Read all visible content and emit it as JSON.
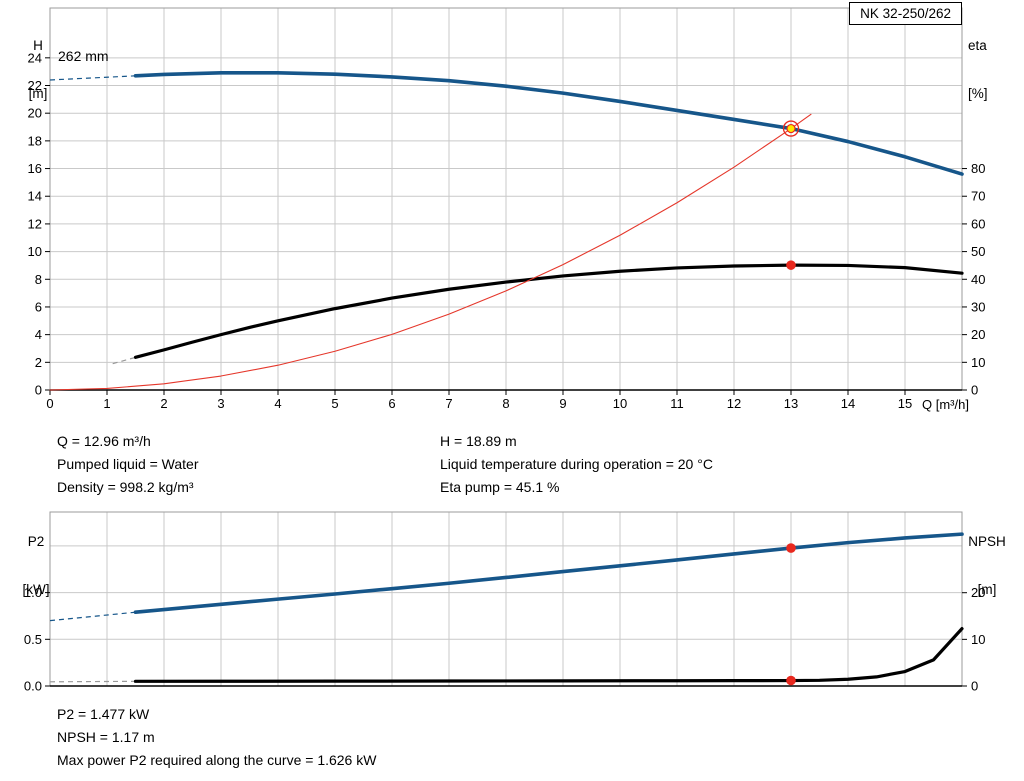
{
  "pump_model_box": "NK 32-250/262",
  "labels": {
    "top_left_axis_line1": "H",
    "top_left_axis_line2": "[m]",
    "top_right_axis_line1": "eta",
    "top_right_axis_line2": "[%]",
    "top_x_axis": "Q [m³/h]",
    "impeller_diameter": "262 mm",
    "bottom_left_axis_line1": "P2",
    "bottom_left_axis_line2": "[kW]",
    "bottom_right_axis_line1": "NPSH",
    "bottom_right_axis_line2": "[m]"
  },
  "operating_info": {
    "left": [
      "Q = 12.96 m³/h",
      "Pumped liquid = Water",
      "Density = 998.2 kg/m³"
    ],
    "right": [
      "H = 18.89 m",
      "Liquid temperature during operation = 20 °C",
      "Eta pump = 45.1 %"
    ]
  },
  "bottom_info": [
    "P2 = 1.477 kW",
    "NPSH = 1.17 m",
    "Max power P2 required along the curve = 1.626 kW"
  ],
  "colors": {
    "curve_blue": "#16568a",
    "curve_black": "#000000",
    "curve_red": "#e5372b",
    "marker_red": "#e8281e",
    "marker_yellow": "#ffe600",
    "grid": "#c9c9c9",
    "frame": "#9b9b9b",
    "dash_gray": "#999999"
  },
  "chart_data": [
    {
      "type": "line",
      "name": "qh-efficiency-chart",
      "title": "NK 32-250/262",
      "x_axis": {
        "label": "Q [m³/h]",
        "min": 0,
        "max": 16,
        "grid_step": 1,
        "tick_values": [
          0,
          1,
          2,
          3,
          4,
          5,
          6,
          7,
          8,
          9,
          10,
          11,
          12,
          13,
          14,
          15
        ],
        "tick_labels": [
          "0",
          "1",
          "2",
          "3",
          "4",
          "5",
          "6",
          "7",
          "8",
          "9",
          "10",
          "11",
          "12",
          "13",
          "14",
          "15"
        ]
      },
      "y_left": {
        "label": "H [m]",
        "min": 0,
        "max": 27.6,
        "tick_values": [
          0,
          2,
          4,
          6,
          8,
          10,
          12,
          14,
          16,
          18,
          20,
          22,
          24
        ],
        "tick_labels": [
          "0",
          "2",
          "4",
          "6",
          "8",
          "10",
          "12",
          "14",
          "16",
          "18",
          "20",
          "22",
          "24"
        ],
        "grid_values": [
          2,
          4,
          6,
          8,
          10,
          12,
          14,
          16,
          18,
          20,
          22,
          24
        ]
      },
      "y_right": {
        "label": "eta [%]",
        "min": 0,
        "max": 138,
        "tick_values": [
          0,
          10,
          20,
          30,
          40,
          50,
          60,
          70,
          80
        ],
        "tick_labels": [
          "0",
          "10",
          "20",
          "30",
          "40",
          "50",
          "60",
          "70",
          "80"
        ]
      },
      "series": [
        {
          "name": "head-curve-262mm",
          "axis": "left",
          "color": "#16568a",
          "width": 3.6,
          "dash_lead": [
            [
              0,
              22.4
            ],
            [
              1.5,
              22.7
            ]
          ],
          "points": [
            [
              1.5,
              22.7
            ],
            [
              2,
              22.8
            ],
            [
              3,
              22.92
            ],
            [
              4,
              22.92
            ],
            [
              5,
              22.82
            ],
            [
              6,
              22.62
            ],
            [
              7,
              22.35
            ],
            [
              8,
              21.95
            ],
            [
              9,
              21.45
            ],
            [
              10,
              20.85
            ],
            [
              11,
              20.2
            ],
            [
              12,
              19.55
            ],
            [
              13,
              18.89
            ],
            [
              14,
              17.95
            ],
            [
              15,
              16.85
            ],
            [
              16,
              15.6
            ]
          ]
        },
        {
          "name": "efficiency-curve",
          "axis": "right",
          "color": "#000000",
          "width": 3.2,
          "dash_color": "#999999",
          "dash_lead": [
            [
              1.1,
              9.5
            ],
            [
              1.5,
              11.8
            ]
          ],
          "points": [
            [
              1.5,
              11.8
            ],
            [
              2,
              14.5
            ],
            [
              2.5,
              17.3
            ],
            [
              3,
              20
            ],
            [
              3.5,
              22.6
            ],
            [
              4,
              25
            ],
            [
              5,
              29.4
            ],
            [
              6,
              33.2
            ],
            [
              7,
              36.4
            ],
            [
              8,
              39
            ],
            [
              9,
              41.2
            ],
            [
              10,
              42.9
            ],
            [
              11,
              44.1
            ],
            [
              12,
              44.8
            ],
            [
              13,
              45.1
            ],
            [
              14,
              45
            ],
            [
              15,
              44.2
            ],
            [
              16,
              42.2
            ]
          ]
        },
        {
          "name": "duty-point-parabola",
          "axis": "left",
          "color": "#e5372b",
          "width": 1.1,
          "points": [
            [
              0,
              0
            ],
            [
              1,
              0.11
            ],
            [
              2,
              0.45
            ],
            [
              3,
              1.01
            ],
            [
              4,
              1.79
            ],
            [
              5,
              2.8
            ],
            [
              6,
              4.02
            ],
            [
              7,
              5.48
            ],
            [
              8,
              7.16
            ],
            [
              9,
              9.06
            ],
            [
              10,
              11.18
            ],
            [
              11,
              13.53
            ],
            [
              12,
              16.1
            ],
            [
              13,
              18.89
            ],
            [
              13.35,
              19.92
            ]
          ]
        }
      ],
      "markers": [
        {
          "style": "ring-yellow",
          "axis": "left",
          "x": 13,
          "y": 18.89
        },
        {
          "style": "dot",
          "axis": "right",
          "x": 13,
          "y": 45.1
        }
      ]
    },
    {
      "type": "line",
      "name": "p2-npsh-chart",
      "title": "",
      "x_axis": {
        "label": "",
        "min": 0,
        "max": 16,
        "grid_step": 1,
        "tick_values": [],
        "tick_labels": []
      },
      "y_left": {
        "label": "P2 [kW]",
        "min": 0,
        "max": 1.863,
        "tick_values": [
          0,
          0.5,
          1
        ],
        "tick_labels": [
          "0.0",
          "0.5",
          "1.0"
        ],
        "grid_values": [
          0.5,
          1,
          1.5
        ]
      },
      "y_right": {
        "label": "NPSH [m]",
        "min": 0,
        "max": 37.3,
        "tick_values": [
          0,
          10,
          20
        ],
        "tick_labels": [
          "0",
          "10",
          "20"
        ]
      },
      "series": [
        {
          "name": "p2-curve",
          "axis": "left",
          "color": "#16568a",
          "width": 3.6,
          "dash_lead": [
            [
              0,
              0.7
            ],
            [
              1.5,
              0.79
            ]
          ],
          "points": [
            [
              1.5,
              0.79
            ],
            [
              2,
              0.818
            ],
            [
              3,
              0.875
            ],
            [
              4,
              0.93
            ],
            [
              5,
              0.985
            ],
            [
              6,
              1.042
            ],
            [
              7,
              1.1
            ],
            [
              8,
              1.162
            ],
            [
              9,
              1.225
            ],
            [
              10,
              1.287
            ],
            [
              11,
              1.35
            ],
            [
              12,
              1.414
            ],
            [
              13,
              1.477
            ],
            [
              14,
              1.535
            ],
            [
              15,
              1.585
            ],
            [
              16,
              1.626
            ]
          ]
        },
        {
          "name": "npsh-curve",
          "axis": "right",
          "color": "#000000",
          "width": 3.2,
          "dash_color": "#999999",
          "dash_lead": [
            [
              0,
              0.9
            ],
            [
              1.5,
              1.0
            ]
          ],
          "points": [
            [
              1.5,
              1.0
            ],
            [
              3,
              1.02
            ],
            [
              5,
              1.04
            ],
            [
              7,
              1.07
            ],
            [
              9,
              1.1
            ],
            [
              11,
              1.13
            ],
            [
              12,
              1.15
            ],
            [
              13,
              1.17
            ],
            [
              13.5,
              1.22
            ],
            [
              14,
              1.45
            ],
            [
              14.5,
              1.95
            ],
            [
              15,
              3.1
            ],
            [
              15.5,
              5.6
            ],
            [
              16,
              12.3
            ]
          ]
        }
      ],
      "markers": [
        {
          "style": "dot",
          "axis": "left",
          "x": 13,
          "y": 1.477
        },
        {
          "style": "dot",
          "axis": "right",
          "x": 13,
          "y": 1.17
        }
      ]
    }
  ]
}
